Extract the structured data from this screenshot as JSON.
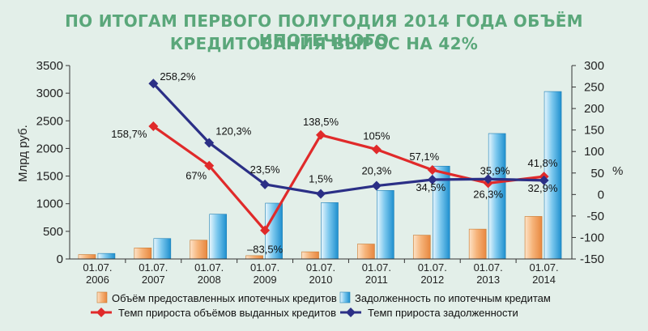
{
  "title_line1": "ПО ИТОГАМ ПЕРВОГО ПОЛУГОДИЯ 2014 ГОДА ОБЪЁМ ИПОТЕЧНОГО",
  "title_line2": "КРЕДИТОВАНИЯ ВЫРОС НА 42%",
  "colors": {
    "background": "#e3efe9",
    "title": "#5aa77a",
    "bar_issued": "#f2a35f",
    "bar_debt": "#3fa6dd",
    "line_issued_growth": "#e02a2a",
    "line_debt_growth": "#2b2f86"
  },
  "chart_data": {
    "type": "bar+line",
    "categories": [
      "01.07.\n2006",
      "01.07.\n2007",
      "01.07.\n2008",
      "01.07.\n2009",
      "01.07.\n2010",
      "01.07.\n2011",
      "01.07.\n2012",
      "01.07.\n2013",
      "01.07.\n2014"
    ],
    "ylabel_left": "Млрд руб.",
    "ylabel_right": "%",
    "ylim_left": [
      0,
      3500
    ],
    "yticks_left": [
      0,
      500,
      1000,
      1500,
      2000,
      2500,
      3000,
      3500
    ],
    "ylim_right": [
      -150,
      300
    ],
    "yticks_right": [
      -150,
      -100,
      -50,
      0,
      50,
      100,
      150,
      200,
      250,
      300
    ],
    "bars": [
      {
        "name": "Объём предоставленных ипотечных кредитов",
        "axis": "left",
        "values": [
          80,
          200,
          340,
          60,
          130,
          270,
          430,
          540,
          770
        ]
      },
      {
        "name": "Задолженность по ипотечным кредитам",
        "axis": "left",
        "values": [
          100,
          370,
          810,
          1010,
          1020,
          1240,
          1680,
          2270,
          3030
        ]
      }
    ],
    "lines": [
      {
        "name": "Темп прироста объёмов выданных кредитов",
        "axis": "right",
        "values": [
          null,
          158.7,
          67,
          -83.5,
          138.5,
          105,
          57.1,
          26.3,
          41.8
        ],
        "labels": [
          null,
          "158,7%",
          "67%",
          "–83,5%",
          "138,5%",
          "105%",
          "57,1%",
          "26,3%",
          "41,8%"
        ]
      },
      {
        "name": "Темп прироста задолженности",
        "axis": "right",
        "values": [
          null,
          258.2,
          120.3,
          23.5,
          1.5,
          20.3,
          34.5,
          35.9,
          32.9
        ],
        "labels": [
          null,
          "258,2%",
          "120,3%",
          "23,5%",
          "1,5%",
          "20,3%",
          "34,5%",
          "35,9%",
          "32,9%"
        ]
      }
    ],
    "legend_placement": "bottom"
  }
}
